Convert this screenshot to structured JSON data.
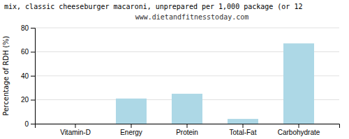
{
  "chart_data": {
    "type": "bar",
    "title": "mix, classic cheeseburger macaroni, unprepared per 1,000 package (or 12",
    "subtitle": "www.dietandfitnesstoday.com",
    "ylabel": "Percentage of RDH (%)",
    "categories": [
      "Vitamin-D",
      "Energy",
      "Protein",
      "Total-Fat",
      "Carbohydrate"
    ],
    "values": [
      0,
      21,
      25,
      4,
      67
    ],
    "color": "#add8e6",
    "ylim": [
      0,
      80
    ],
    "yticks": [
      0,
      20,
      40,
      60,
      80
    ],
    "grid": true
  }
}
